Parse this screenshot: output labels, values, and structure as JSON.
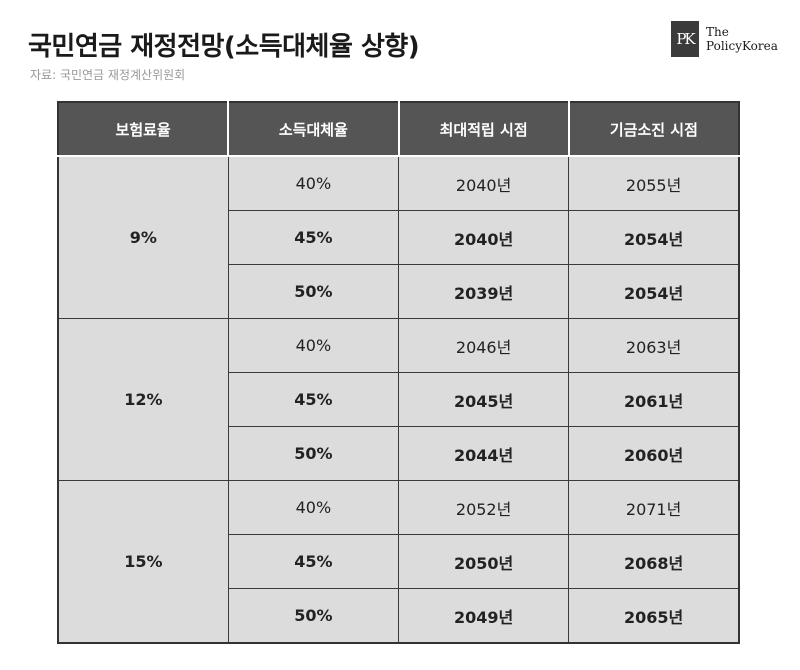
{
  "header": {
    "title": "국민연금 재정전망(소득대체율 상향)",
    "source": "자료: 국민연금 재정계산위원회"
  },
  "logo": {
    "mark": "PK",
    "line1": "The",
    "line2": "PolicyKorea"
  },
  "chart_data": {
    "type": "table",
    "columns": [
      "보험료율",
      "소득대체율",
      "최대적립 시점",
      "기금소진 시점"
    ],
    "groups": [
      {
        "rate": "9%",
        "rows": [
          {
            "replacement": "40%",
            "peak": "2040년",
            "depletion": "2055년"
          },
          {
            "replacement": "45%",
            "peak": "2040년",
            "depletion": "2054년"
          },
          {
            "replacement": "50%",
            "peak": "2039년",
            "depletion": "2054년"
          }
        ]
      },
      {
        "rate": "12%",
        "rows": [
          {
            "replacement": "40%",
            "peak": "2046년",
            "depletion": "2063년"
          },
          {
            "replacement": "45%",
            "peak": "2045년",
            "depletion": "2061년"
          },
          {
            "replacement": "50%",
            "peak": "2044년",
            "depletion": "2060년"
          }
        ]
      },
      {
        "rate": "15%",
        "rows": [
          {
            "replacement": "40%",
            "peak": "2052년",
            "depletion": "2071년"
          },
          {
            "replacement": "45%",
            "peak": "2050년",
            "depletion": "2068년"
          },
          {
            "replacement": "50%",
            "peak": "2049년",
            "depletion": "2065년"
          }
        ]
      }
    ]
  }
}
